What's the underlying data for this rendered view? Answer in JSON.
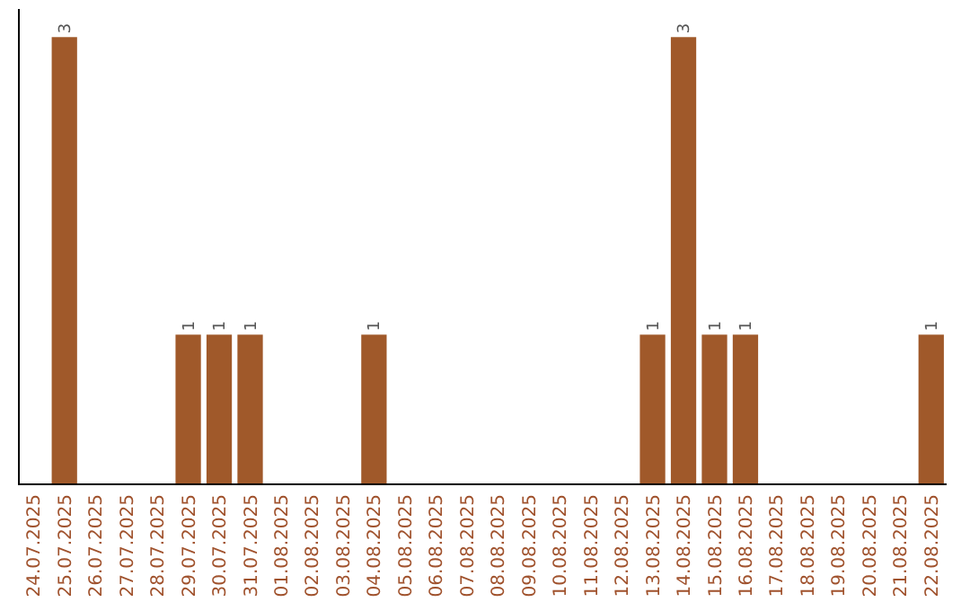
{
  "chart_data": {
    "type": "bar",
    "categories": [
      "24.07.2025",
      "25.07.2025",
      "26.07.2025",
      "27.07.2025",
      "28.07.2025",
      "29.07.2025",
      "30.07.2025",
      "31.07.2025",
      "01.08.2025",
      "02.08.2025",
      "03.08.2025",
      "04.08.2025",
      "05.08.2025",
      "06.08.2025",
      "07.08.2025",
      "08.08.2025",
      "09.08.2025",
      "10.08.2025",
      "11.08.2025",
      "12.08.2025",
      "13.08.2025",
      "14.08.2025",
      "15.08.2025",
      "16.08.2025",
      "17.08.2025",
      "18.08.2025",
      "19.08.2025",
      "20.08.2025",
      "21.08.2025",
      "22.08.2025"
    ],
    "values": [
      0,
      3,
      0,
      0,
      0,
      1,
      1,
      1,
      0,
      0,
      0,
      1,
      0,
      0,
      0,
      0,
      0,
      0,
      0,
      0,
      1,
      3,
      1,
      1,
      0,
      0,
      0,
      0,
      0,
      1
    ],
    "value_labels": [
      null,
      "3",
      null,
      null,
      null,
      "1",
      "1",
      "1",
      null,
      null,
      null,
      "1",
      null,
      null,
      null,
      null,
      null,
      null,
      null,
      null,
      "1",
      "3",
      "1",
      "1",
      null,
      null,
      null,
      null,
      null,
      "1"
    ],
    "color": "#a0592a",
    "relative": false
  }
}
